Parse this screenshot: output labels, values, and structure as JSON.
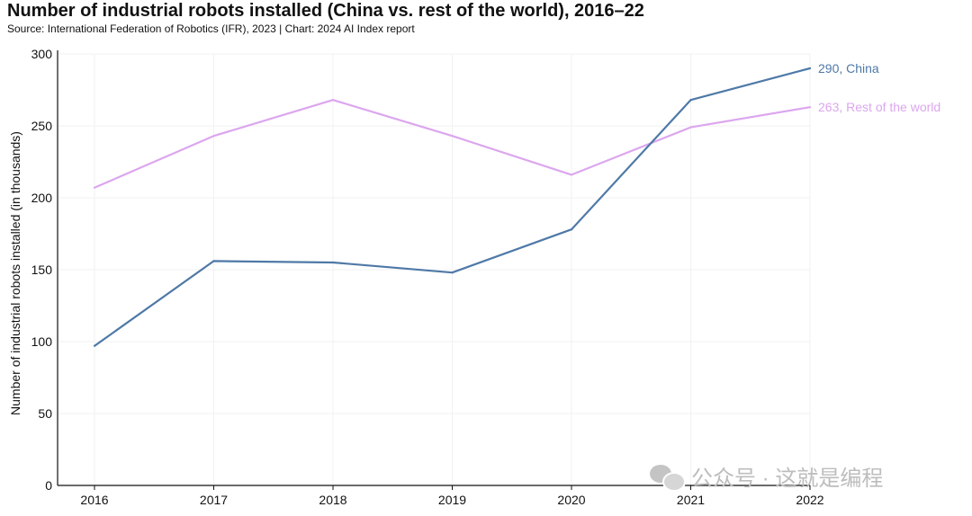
{
  "chart_data": {
    "type": "line",
    "title": "Number of industrial robots installed (China vs. rest of the world), 2016–22",
    "subtitle": "Source: International Federation of Robotics (IFR), 2023 | Chart: 2024 AI Index report",
    "xlabel": "",
    "ylabel": "Number of industrial robots installed (in thousands)",
    "x": [
      "2016",
      "2017",
      "2018",
      "2019",
      "2020",
      "2021",
      "2022"
    ],
    "ylim": [
      0,
      300
    ],
    "yticks": [
      0,
      50,
      100,
      150,
      200,
      250,
      300
    ],
    "grid": true,
    "series": [
      {
        "name": "China",
        "values": [
          97,
          156,
          155,
          148,
          178,
          268,
          290
        ],
        "color": "#4e79a7",
        "end_label": "290, China"
      },
      {
        "name": "Rest of the world",
        "values": [
          207,
          243,
          268,
          243,
          216,
          249,
          263
        ],
        "color": "#dca6ee",
        "end_label": "263, Rest of the world"
      }
    ]
  },
  "watermark": {
    "text": "公众号 · 这就是编程",
    "icon": "wechat-icon"
  }
}
